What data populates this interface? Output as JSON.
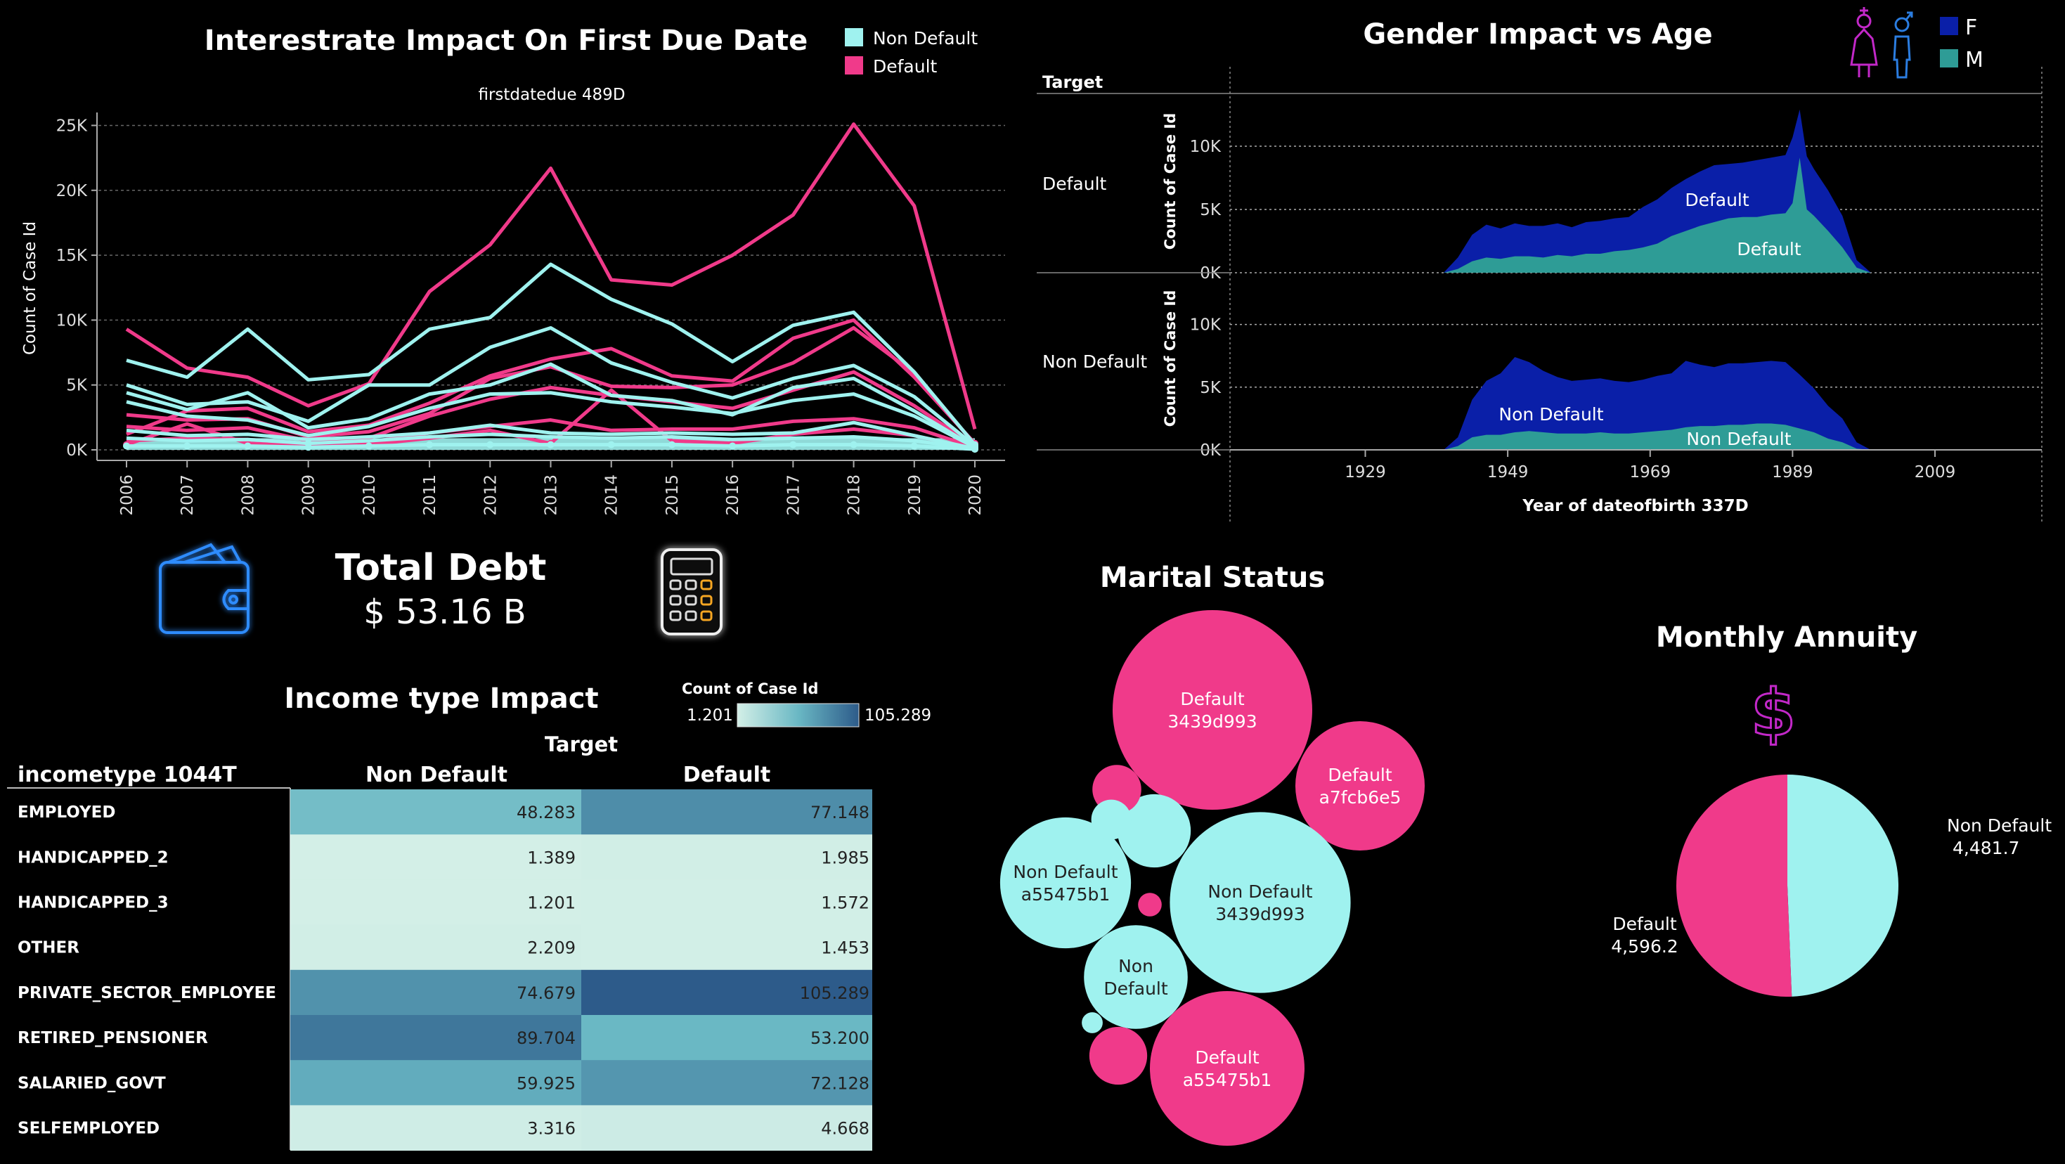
{
  "colors": {
    "non_default": "#9ff2ef",
    "default": "#f03a8a",
    "female_area": "#0a1fa8",
    "male_area": "#2e9c96",
    "heat_low": "#bde6dc",
    "heat_high": "#2d5b8a"
  },
  "icons": [
    "wallet-icon",
    "calculator-icon",
    "female-icon",
    "male-icon",
    "dollar-icon"
  ],
  "total_debt": {
    "title": "Total Debt",
    "value": "$ 53.16 B"
  },
  "chart_data": [
    {
      "id": "interest",
      "type": "line",
      "title": "Interestrate Impact On First Due Date",
      "subtitle": "firstdatedue 489D",
      "ylabel": "Count of Case Id",
      "ylim": [
        0,
        26000
      ],
      "yticks": [
        0,
        5000,
        10000,
        15000,
        20000,
        25000
      ],
      "ytick_labels": [
        "0K",
        "5K",
        "10K",
        "15K",
        "20K",
        "25K"
      ],
      "legend": [
        "Non Default",
        "Default"
      ],
      "legend_position": "top-right",
      "x": [
        "2006",
        "2007",
        "2008",
        "2009",
        "2010",
        "2011",
        "2012",
        "2013",
        "2014",
        "2015",
        "2016",
        "2017",
        "2018",
        "2019",
        "2020"
      ],
      "series": [
        {
          "name": "Default",
          "values": [
            9300,
            6300,
            5600,
            3400,
            5100,
            12200,
            15800,
            21700,
            13100,
            12700,
            15000,
            18100,
            25100,
            18800,
            1600
          ]
        },
        {
          "name": "Default",
          "values": [
            1200,
            3000,
            3200,
            1400,
            1900,
            3600,
            5700,
            7000,
            7800,
            5700,
            5300,
            8600,
            10000,
            5600,
            500
          ]
        },
        {
          "name": "Default",
          "values": [
            2700,
            2300,
            2400,
            1000,
            1400,
            2800,
            5500,
            6400,
            4900,
            4800,
            5000,
            6700,
            9400,
            5900,
            400
          ]
        },
        {
          "name": "Default",
          "values": [
            1800,
            1500,
            1700,
            700,
            900,
            2600,
            3900,
            4800,
            4200,
            3700,
            3200,
            4600,
            6000,
            3400,
            300
          ]
        },
        {
          "name": "Default",
          "values": [
            700,
            900,
            800,
            500,
            600,
            1300,
            1800,
            2300,
            1500,
            1600,
            1600,
            2200,
            2400,
            1700,
            200
          ]
        },
        {
          "name": "Default",
          "values": [
            400,
            2000,
            500,
            300,
            400,
            900,
            1500,
            500,
            4600,
            700,
            500,
            1200,
            1600,
            1100,
            100
          ]
        },
        {
          "name": "Non Default",
          "values": [
            6900,
            5600,
            9300,
            5400,
            5800,
            9300,
            10200,
            14300,
            11600,
            9700,
            6800,
            9600,
            10600,
            6000,
            400
          ]
        },
        {
          "name": "Non Default",
          "values": [
            5000,
            3500,
            3700,
            2200,
            5000,
            5000,
            7900,
            9400,
            6700,
            5200,
            4000,
            5500,
            6500,
            4100,
            300
          ]
        },
        {
          "name": "Non Default",
          "values": [
            4400,
            3100,
            4400,
            1700,
            2400,
            4300,
            5000,
            6600,
            4200,
            3800,
            2700,
            4800,
            5500,
            3000,
            200
          ]
        },
        {
          "name": "Non Default",
          "values": [
            3700,
            2600,
            2300,
            1100,
            1800,
            3200,
            4300,
            4400,
            3700,
            3300,
            2800,
            3800,
            4300,
            2600,
            200
          ]
        },
        {
          "name": "Non Default",
          "values": [
            1500,
            1100,
            1200,
            800,
            1000,
            1300,
            1900,
            1300,
            1200,
            1300,
            1200,
            1300,
            2100,
            1100,
            100
          ]
        },
        {
          "name": "Non Default",
          "values": [
            900,
            700,
            800,
            500,
            700,
            1000,
            1200,
            1000,
            900,
            1000,
            800,
            900,
            1000,
            700,
            100
          ]
        },
        {
          "name": "Non Default",
          "values": [
            300,
            300,
            300,
            200,
            300,
            400,
            400,
            400,
            400,
            400,
            300,
            400,
            400,
            300,
            50
          ]
        }
      ]
    },
    {
      "id": "gender",
      "type": "area",
      "title": "Gender Impact vs Age",
      "row_header": "Target",
      "xlabel": "Year of dateofbirth 337D",
      "ylabel": "Count of Case Id",
      "xlim": [
        1910,
        2024
      ],
      "xticks": [
        1929,
        1949,
        1969,
        1989,
        2009
      ],
      "ylim": [
        0,
        12500
      ],
      "yticks": [
        0,
        5000,
        10000
      ],
      "ytick_labels": [
        "0K",
        "5K",
        "10K"
      ],
      "legend": [
        "F",
        "M"
      ],
      "legend_position": "top-right",
      "panels": [
        {
          "row": "Default",
          "label_f": "Default",
          "label_m": "Default",
          "x": [
            1940,
            1942,
            1944,
            1946,
            1948,
            1950,
            1952,
            1954,
            1956,
            1958,
            1960,
            1962,
            1964,
            1966,
            1968,
            1970,
            1972,
            1974,
            1976,
            1978,
            1980,
            1982,
            1984,
            1986,
            1988,
            1989,
            1990,
            1991,
            1992,
            1994,
            1996,
            1998,
            2000
          ],
          "female": [
            0,
            1200,
            3000,
            3800,
            3500,
            3900,
            3700,
            3700,
            3900,
            3600,
            4000,
            4100,
            4300,
            4400,
            5200,
            5800,
            6700,
            7400,
            8000,
            8500,
            8600,
            8700,
            8900,
            9100,
            9300,
            10700,
            12900,
            9200,
            8200,
            6500,
            4500,
            1000,
            0
          ],
          "male": [
            0,
            300,
            900,
            1200,
            1100,
            1300,
            1300,
            1200,
            1400,
            1300,
            1500,
            1500,
            1700,
            1800,
            2000,
            2300,
            2900,
            3300,
            3700,
            4000,
            4300,
            4400,
            4400,
            4600,
            4700,
            5500,
            9100,
            5000,
            4500,
            3300,
            2000,
            400,
            0
          ]
        },
        {
          "row": "Non Default",
          "label_f": "Non Default",
          "label_m": "Non Default",
          "x": [
            1940,
            1942,
            1944,
            1946,
            1948,
            1950,
            1952,
            1954,
            1956,
            1958,
            1960,
            1962,
            1964,
            1966,
            1968,
            1970,
            1972,
            1974,
            1976,
            1978,
            1980,
            1982,
            1984,
            1986,
            1988,
            1990,
            1992,
            1994,
            1996,
            1998,
            2000
          ],
          "female": [
            0,
            1000,
            4000,
            5500,
            6100,
            7400,
            7000,
            6300,
            5800,
            5500,
            5600,
            5700,
            5500,
            5400,
            5600,
            5900,
            6100,
            7100,
            6800,
            6600,
            6900,
            6900,
            7000,
            7100,
            7000,
            6000,
            4900,
            3500,
            2500,
            600,
            0
          ],
          "male": [
            0,
            300,
            1000,
            1200,
            1200,
            1400,
            1500,
            1400,
            1300,
            1300,
            1300,
            1400,
            1300,
            1300,
            1400,
            1500,
            1600,
            1800,
            1900,
            1900,
            2000,
            2000,
            2100,
            2100,
            2000,
            1700,
            1400,
            900,
            600,
            100,
            0
          ]
        }
      ]
    },
    {
      "id": "income",
      "type": "heatmap",
      "title": "Income type Impact",
      "row_header": "incometype 1044T",
      "col_group": "Target",
      "columns": [
        "Non Default",
        "Default"
      ],
      "color_legend_title": "Count of Case Id",
      "color_min_label": "1.201",
      "color_max_label": "105.289",
      "value_range": [
        1.201,
        105.289
      ],
      "rows": [
        {
          "label": "EMPLOYED",
          "non_default": 48.283,
          "default": 77.148,
          "non_default_text": "48.283",
          "default_text": "77.148"
        },
        {
          "label": "HANDICAPPED_2",
          "non_default": 1.389,
          "default": 1.985,
          "non_default_text": "1.389",
          "default_text": "1.985"
        },
        {
          "label": "HANDICAPPED_3",
          "non_default": 1.201,
          "default": 1.572,
          "non_default_text": "1.201",
          "default_text": "1.572"
        },
        {
          "label": "OTHER",
          "non_default": 2.209,
          "default": 1.453,
          "non_default_text": "2.209",
          "default_text": "1.453"
        },
        {
          "label": "PRIVATE_SECTOR_EMPLOYEE",
          "non_default": 74.679,
          "default": 105.289,
          "non_default_text": "74.679",
          "default_text": "105.289"
        },
        {
          "label": "RETIRED_PENSIONER",
          "non_default": 89.704,
          "default": 53.2,
          "non_default_text": "89.704",
          "default_text": "53.200"
        },
        {
          "label": "SALARIED_GOVT",
          "non_default": 59.925,
          "default": 72.128,
          "non_default_text": "59.925",
          "default_text": "72.128"
        },
        {
          "label": "SELFEMPLOYED",
          "non_default": 3.316,
          "default": 4.668,
          "non_default_text": "3.316",
          "default_text": "4.668"
        }
      ]
    },
    {
      "id": "marital",
      "type": "bubble",
      "title": "Marital Status",
      "bubbles": [
        {
          "label": [
            "Default",
            "3439d993"
          ],
          "target": "Default",
          "size": 1.0
        },
        {
          "label": [
            "Default",
            "a7fcb6e5"
          ],
          "target": "Default",
          "size": 0.42
        },
        {
          "label": [
            "Non Default",
            "3439d993"
          ],
          "target": "Non Default",
          "size": 0.82
        },
        {
          "label": [
            "Non Default",
            "a55475b1"
          ],
          "target": "Non Default",
          "size": 0.43
        },
        {
          "label": [
            "Non",
            "Default"
          ],
          "target": "Non Default",
          "size": 0.27
        },
        {
          "label": [
            "Default",
            "a55475b1"
          ],
          "target": "Default",
          "size": 0.6
        },
        {
          "label": [],
          "target": "Non Default",
          "size": 0.135
        },
        {
          "label": [],
          "target": "Default",
          "size": 0.06
        },
        {
          "label": [],
          "target": "Non Default",
          "size": 0.04
        },
        {
          "label": [],
          "target": "Non Default",
          "size": 0.011
        },
        {
          "label": [],
          "target": "Default",
          "size": 0.084
        },
        {
          "label": [],
          "target": "Default",
          "size": 0.014
        }
      ]
    },
    {
      "id": "annuity",
      "type": "pie",
      "title": "Monthly Annuity",
      "slices": [
        {
          "name": "Non Default",
          "value": 4481.7,
          "value_text": "4,481.7"
        },
        {
          "name": "Default",
          "value": 4596.2,
          "value_text": "4,596.2"
        }
      ]
    }
  ]
}
